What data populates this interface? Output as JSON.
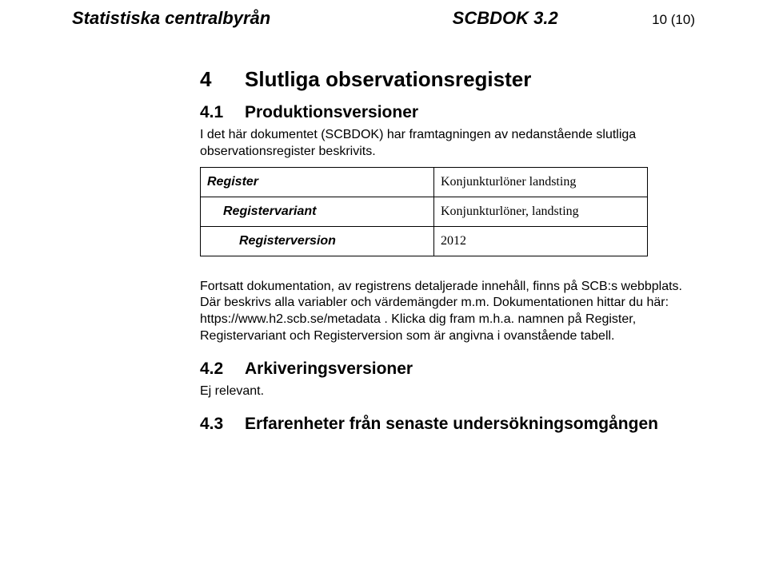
{
  "header": {
    "left": "Statistiska centralbyrån",
    "center": "SCBDOK 3.2",
    "right": "10 (10)"
  },
  "section4": {
    "number": "4",
    "title": "Slutliga observationsregister"
  },
  "section41": {
    "number": "4.1",
    "title": "Produktionsversioner",
    "intro": "I det här dokumentet (SCBDOK) har framtagningen av nedanstående slutliga observationsregister beskrivits."
  },
  "table": {
    "rows": [
      {
        "label": "Register",
        "value": "Konjunkturlöner landsting",
        "indentClass": ""
      },
      {
        "label": "Registervariant",
        "value": "Konjunkturlöner, landsting",
        "indentClass": "indent1"
      },
      {
        "label": "Registerversion",
        "value": "2012",
        "indentClass": "indent2"
      }
    ]
  },
  "postTable": "Fortsatt dokumentation, av registrens detaljerade innehåll, finns på SCB:s webbplats. Där beskrivs alla variabler och värdemängder m.m. Dokumentationen hittar du här: https://www.h2.scb.se/metadata . Klicka dig fram m.h.a. namnen på Register, Registervariant och Registerversion som är angivna i ovanstående tabell.",
  "section42": {
    "number": "4.2",
    "title": "Arkiveringsversioner",
    "body": "Ej relevant."
  },
  "section43": {
    "number": "4.3",
    "title": "Erfarenheter från senaste undersökningsomgången"
  }
}
